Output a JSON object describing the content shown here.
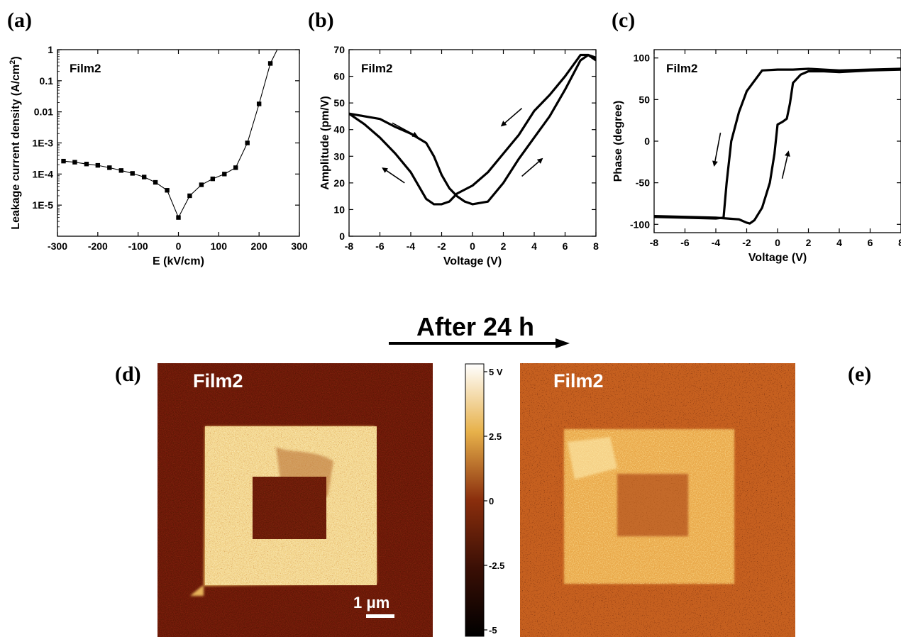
{
  "colors": {
    "ink": "#000000",
    "map_dark": "#6e1c0a",
    "map_mid": "#b4461a",
    "map_bright": "#f7e0a0",
    "map_after_bg": "#c55e1e"
  },
  "chart_data": [
    {
      "id": "a",
      "type": "line",
      "panel_label": "(a)",
      "annotation": "Film2",
      "xlabel": "E (kV/cm)",
      "ylabel": "Leakage current density (A/cm^2)",
      "ylabel_main": "Leakage current density (A/cm",
      "ylabel_sup": "2",
      "ylabel_end": ")",
      "xlim": [
        -300,
        300
      ],
      "ylim": [
        1e-06,
        1
      ],
      "yscale": "log",
      "xticks": [
        "-300",
        "-200",
        "-100",
        "0",
        "100",
        "200",
        "300"
      ],
      "yticks": [
        "1E-5",
        "1E-4",
        "1E-3",
        "0.01",
        "0.1",
        "1"
      ],
      "x": [
        -285,
        -257,
        -228,
        -200,
        -171,
        -142,
        -114,
        -85,
        -57,
        -28,
        0,
        28,
        57,
        85,
        114,
        142,
        171,
        200,
        228,
        245
      ],
      "y": [
        0.00026,
        0.00024,
        0.00021,
        0.00019,
        0.00016,
        0.00013,
        0.000105,
        8e-05,
        5.4e-05,
        3e-05,
        4e-06,
        2e-05,
        4.5e-05,
        7e-05,
        0.0001,
        0.00016,
        0.001,
        0.018,
        0.36,
        1.0
      ]
    },
    {
      "id": "b",
      "type": "line",
      "panel_label": "(b)",
      "annotation": "Film2",
      "xlabel": "Voltage (V)",
      "ylabel": "Amplitude (pm/V)",
      "xlim": [
        -8,
        8
      ],
      "ylim": [
        0,
        70
      ],
      "xticks": [
        "-8",
        "-6",
        "-4",
        "-2",
        "0",
        "2",
        "4",
        "6",
        "8"
      ],
      "yticks": [
        "0",
        "10",
        "20",
        "30",
        "40",
        "50",
        "60",
        "70"
      ],
      "series": [
        {
          "x": [
            -8,
            -7,
            -6,
            -5,
            -4,
            -3,
            -2.5,
            -2,
            -1.5,
            -1,
            -0.5,
            0,
            1,
            2,
            3,
            4,
            5,
            6,
            7,
            7.5,
            8
          ],
          "y": [
            46,
            45,
            44,
            41,
            38.5,
            35,
            30,
            23,
            18,
            15,
            13,
            12,
            13,
            20,
            29,
            37,
            45,
            55,
            66,
            68,
            67
          ]
        },
        {
          "x": [
            8,
            7.5,
            7,
            6,
            5,
            4,
            3,
            2,
            1,
            0,
            -1,
            -1.5,
            -2,
            -2.5,
            -3,
            -4,
            -5,
            -6,
            -7,
            -8
          ],
          "y": [
            66,
            68,
            68,
            60,
            53,
            47,
            38,
            31,
            24,
            19,
            16,
            13,
            12,
            12,
            14,
            24,
            31,
            37,
            42,
            46
          ]
        }
      ],
      "arrows": [
        {
          "x1": -5.2,
          "y1": 42.5,
          "x2": -3.6,
          "y2": 37.5
        },
        {
          "x1": 3.2,
          "y1": 48,
          "x2": 1.9,
          "y2": 41.5
        },
        {
          "x1": 3.2,
          "y1": 22.5,
          "x2": 4.5,
          "y2": 29
        },
        {
          "x1": -4.4,
          "y1": 20,
          "x2": -5.8,
          "y2": 25.5
        }
      ]
    },
    {
      "id": "c",
      "type": "line",
      "panel_label": "(c)",
      "annotation": "Film2",
      "xlabel": "Voltage (V)",
      "ylabel": "Phase (degree)",
      "xlim": [
        -8,
        8
      ],
      "ylim": [
        -110,
        110
      ],
      "xticks": [
        "-8",
        "-6",
        "-4",
        "-2",
        "0",
        "2",
        "4",
        "6",
        "8"
      ],
      "yticks": [
        "-100",
        "-50",
        "0",
        "50",
        "100"
      ],
      "series": [
        {
          "x": [
            -8,
            -6,
            -4,
            -2.5,
            -2,
            -1.8,
            -1.5,
            -1,
            -0.5,
            -0.2,
            0,
            0.3,
            0.6,
            0.8,
            1,
            1.5,
            2,
            3,
            4,
            6,
            8
          ],
          "y": [
            -90,
            -91,
            -92,
            -94,
            -98,
            -99,
            -95,
            -80,
            -50,
            -15,
            20,
            23,
            27,
            45,
            70,
            80,
            84,
            84,
            83,
            85,
            86
          ]
        },
        {
          "x": [
            8,
            6,
            4,
            2,
            1,
            0,
            -1,
            -2,
            -2.5,
            -3,
            -3.3,
            -3.5,
            -4,
            -6,
            -8
          ],
          "y": [
            87,
            86,
            85,
            87,
            86,
            86,
            85,
            60,
            35,
            0,
            -50,
            -92,
            -93,
            -92,
            -91
          ]
        }
      ],
      "arrows": [
        {
          "x1": -3.7,
          "y1": 10,
          "x2": -4.1,
          "y2": -29
        },
        {
          "x1": 0.3,
          "y1": -45,
          "x2": 0.7,
          "y2": -13
        }
      ]
    }
  ],
  "after_label": "After 24 h",
  "map_d": {
    "panel_label": "(d)",
    "annotation": "Film2",
    "scalebar_label": "1 μm"
  },
  "map_e": {
    "panel_label": "(e)",
    "annotation": "Film2"
  },
  "colorbar": {
    "ticks": [
      "5 V",
      "2.5",
      "0",
      "-2.5",
      "-5"
    ],
    "values": [
      5,
      2.5,
      0,
      -2.5,
      -5
    ],
    "vmin": -5,
    "vmax": 5
  }
}
